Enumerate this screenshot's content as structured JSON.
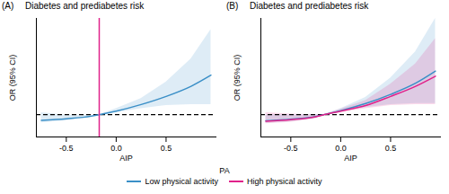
{
  "chart_data": [
    {
      "type": "line",
      "panel": "(A)",
      "title": "Diabetes and prediabetes risk",
      "x_label": "AIP",
      "y_label": "OR (95% CI)",
      "xlim": [
        -0.8,
        1.0
      ],
      "xticks": [
        -0.5,
        {
          "value": 0,
          "label": "0.0"
        },
        0.5
      ],
      "ylim": [
        -1.2,
        10.5
      ],
      "tick_labels": "x",
      "reference_line": {
        "y": 1,
        "line_style": "dashed"
      },
      "series": [
        {
          "name": "Low physical activity",
          "color": "#3a8fc7",
          "x": [
            -0.75,
            -0.5,
            -0.25,
            -0.17,
            0,
            0.25,
            0.5,
            0.75,
            0.95
          ],
          "values": [
            0.45,
            0.6,
            0.85,
            1,
            1.35,
            2.0,
            2.8,
            3.8,
            4.9
          ],
          "lower": [
            0.2,
            0.4,
            0.75,
            1,
            1.2,
            1.6,
            1.9,
            2.0,
            2.0
          ],
          "upper": [
            1.2,
            0.95,
            0.95,
            1,
            1.6,
            2.6,
            4.2,
            6.5,
            9.4
          ]
        },
        {
          "name": "High physical activity",
          "color": "#e0218a",
          "type": "vline",
          "x": -0.17
        }
      ]
    },
    {
      "type": "line",
      "panel": "(B)",
      "title": "Diabetes and prediabetes risk",
      "x_label": "AIP",
      "y_label": "OR (95% CI)",
      "xlim": [
        -0.8,
        1.0
      ],
      "xticks": [
        -0.5,
        {
          "value": 0,
          "label": "0.0"
        },
        0.5
      ],
      "ylim": [
        -1.2,
        10.5
      ],
      "tick_labels": "x",
      "reference_line": {
        "y": 1,
        "line_style": "dashed"
      },
      "legend": "bottom",
      "legend_title": "PA",
      "series": [
        {
          "name": "Low physical activity",
          "color": "#3a8fc7",
          "x": [
            -0.75,
            -0.5,
            -0.25,
            -0.17,
            0,
            0.25,
            0.5,
            0.75,
            0.95
          ],
          "values": [
            0.4,
            0.55,
            0.82,
            1,
            1.4,
            2.1,
            3.0,
            4.1,
            5.3
          ],
          "lower": [
            0.15,
            0.3,
            0.65,
            1,
            1.25,
            1.7,
            2.0,
            2.1,
            2.1
          ],
          "upper": [
            1.0,
            1.0,
            1.0,
            1,
            1.6,
            2.7,
            4.6,
            7.2,
            10.5
          ]
        },
        {
          "name": "High physical activity",
          "color": "#e0218a",
          "x": [
            -0.75,
            -0.5,
            -0.25,
            -0.17,
            0,
            0.25,
            0.5,
            0.75,
            0.95
          ],
          "values": [
            0.35,
            0.5,
            0.8,
            1,
            1.35,
            1.9,
            2.8,
            3.8,
            4.8
          ],
          "lower": [
            0.1,
            0.25,
            0.6,
            1,
            1.2,
            1.6,
            1.9,
            2.0,
            2.0
          ],
          "upper": [
            1.2,
            1.05,
            1.0,
            1,
            1.55,
            2.4,
            4.0,
            6.0,
            8.5
          ]
        }
      ]
    }
  ]
}
